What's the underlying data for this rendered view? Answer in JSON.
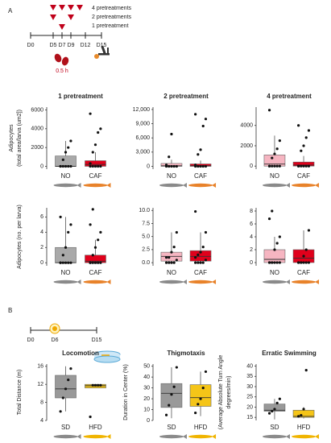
{
  "panel_a": {
    "label": "A",
    "legend": [
      "4 pretreatments",
      "2 pretreatments",
      "1 pretreatment"
    ],
    "days": [
      "D0",
      "D5",
      "D7",
      "D9",
      "D12",
      "D15"
    ],
    "duration": "0.5 h"
  },
  "panel_b": {
    "label": "B",
    "days": [
      "D0",
      "D6",
      "D15"
    ]
  },
  "chart_data": [
    {
      "type": "box",
      "title": "1 pretreatment",
      "ylabel": [
        "Adipocytes",
        "(total area/larva (um2])"
      ],
      "categories": [
        "NO",
        "CAF"
      ],
      "boxes": [
        {
          "color": "#a9a9a9",
          "q1": 0,
          "median": 0,
          "q3": 1100,
          "whislo": 0,
          "whishi": 2700,
          "points": [
            0,
            0,
            0,
            0,
            0,
            0,
            700,
            1500,
            2000,
            2700
          ]
        },
        {
          "color": "#e0001b",
          "q1": 0,
          "median": 200,
          "q3": 600,
          "whislo": 0,
          "whishi": 1500,
          "points": [
            0,
            0,
            0,
            0,
            0,
            300,
            1500,
            2300,
            3600,
            4000,
            5600
          ]
        }
      ],
      "ylim": [
        -300,
        6300
      ],
      "yticks": [
        0,
        2000,
        4000,
        6000
      ]
    },
    {
      "type": "box",
      "title": "2 pretreatment",
      "categories": [
        "NO",
        "CAF"
      ],
      "boxes": [
        {
          "color": "#f6b5c1",
          "q1": 0,
          "median": 100,
          "q3": 600,
          "whislo": 0,
          "whishi": 1400,
          "points": [
            0,
            0,
            0,
            0,
            0,
            300,
            2000,
            6800
          ]
        },
        {
          "color": "#e0001b",
          "q1": 0,
          "median": 100,
          "q3": 500,
          "whislo": 0,
          "whishi": 1200,
          "points": [
            0,
            0,
            0,
            0,
            0,
            300,
            2500,
            3500,
            8500,
            10000,
            11000
          ]
        }
      ],
      "ylim": [
        -600,
        12500
      ],
      "yticks": [
        0,
        {
          "value": 3000,
          "label": "3,000"
        },
        {
          "value": 6000,
          "label": "6,000"
        },
        {
          "value": 9000,
          "label": "9,000"
        },
        {
          "value": 12000,
          "label": "12,000"
        }
      ]
    },
    {
      "type": "box",
      "title": "4 pretreatment",
      "categories": [
        "NO",
        "CAF"
      ],
      "boxes": [
        {
          "color": "#f6b5c1",
          "q1": 0,
          "median": 200,
          "q3": 1100,
          "whislo": 0,
          "whishi": 3000,
          "points": [
            0,
            0,
            0,
            0,
            0,
            0,
            800,
            1200,
            1700,
            2500,
            5500
          ]
        },
        {
          "color": "#e0001b",
          "q1": 0,
          "median": 100,
          "q3": 400,
          "whislo": 0,
          "whishi": 1000,
          "points": [
            0,
            0,
            0,
            0,
            0,
            0,
            1500,
            2000,
            2800,
            3500,
            4000
          ]
        }
      ],
      "ylim": [
        -300,
        5800
      ],
      "yticks": [
        0,
        2000,
        4000
      ]
    },
    {
      "type": "box",
      "ylabel": [
        "Adipocytes (no. per larva)"
      ],
      "categories": [
        "NO",
        "CAF"
      ],
      "boxes": [
        {
          "color": "#a9a9a9",
          "q1": 0,
          "median": 0,
          "q3": 2,
          "whislo": 0,
          "whishi": 6,
          "points": [
            0,
            0,
            0,
            0,
            0,
            0,
            1,
            2,
            4,
            5,
            6
          ]
        },
        {
          "color": "#e0001b",
          "q1": 0,
          "median": 0.2,
          "q3": 1,
          "whislo": 0,
          "whishi": 3,
          "points": [
            0,
            0,
            0,
            0,
            0,
            0,
            1,
            2,
            3,
            4,
            5,
            7
          ]
        }
      ],
      "ylim": [
        -0.4,
        7.2
      ],
      "yticks": [
        0,
        2,
        4,
        6
      ]
    },
    {
      "type": "box",
      "categories": [
        "NO",
        "CAF"
      ],
      "boxes": [
        {
          "color": "#f6b5c1",
          "q1": 0.3,
          "median": 1.2,
          "q3": 2,
          "whislo": 0,
          "whishi": 5.8,
          "points": [
            0,
            0,
            0,
            0,
            0.5,
            1,
            1,
            2,
            3,
            5.8
          ]
        },
        {
          "color": "#e0001b",
          "q1": 0.3,
          "median": 1.2,
          "q3": 2.3,
          "whislo": 0,
          "whishi": 5.8,
          "points": [
            0,
            0,
            0,
            0,
            0.5,
            1,
            1.5,
            2,
            3,
            5.8,
            9.8
          ]
        }
      ],
      "ylim": [
        -0.6,
        10.5
      ],
      "yticks": [
        {
          "value": 0,
          "label": "0.0"
        },
        2.5,
        {
          "value": 5,
          "label": "5.0"
        },
        7.5,
        {
          "value": 10,
          "label": "10.0"
        }
      ]
    },
    {
      "type": "box",
      "categories": [
        "NO",
        "CAF"
      ],
      "boxes": [
        {
          "color": "#f6b5c1",
          "q1": 0,
          "median": 0.5,
          "q3": 2,
          "whislo": 0,
          "whishi": 4,
          "points": [
            0,
            0,
            0,
            0,
            0,
            0,
            0,
            2,
            3,
            4,
            6.8,
            8
          ]
        },
        {
          "color": "#e0001b",
          "q1": 0,
          "median": 0.7,
          "q3": 2,
          "whislo": 0,
          "whishi": 5,
          "points": [
            0,
            0,
            0,
            0,
            0,
            0,
            0,
            1,
            2,
            5
          ]
        }
      ],
      "ylim": [
        -0.5,
        8.5
      ],
      "yticks": [
        0,
        2,
        4,
        6,
        8
      ]
    },
    {
      "type": "box",
      "title": "Locomotion",
      "ylabel": [
        "Total Distance (m)"
      ],
      "categories": [
        "SD",
        "HFD"
      ],
      "boxes": [
        {
          "color": "#999999",
          "q1": 9,
          "median": 11,
          "q3": 14,
          "whislo": 6,
          "whishi": 16,
          "points": [
            6,
            9,
            11,
            13,
            15.5
          ]
        },
        {
          "color": "#f5c518",
          "q1": 11.2,
          "median": 11.7,
          "q3": 12,
          "whislo": 11.2,
          "whishi": 12,
          "points": [
            4.8,
            11.8,
            11.8,
            11.8,
            11.8
          ]
        }
      ],
      "ylim": [
        4,
        16.5
      ],
      "yticks": [
        4,
        8,
        12,
        16
      ]
    },
    {
      "type": "box",
      "title": "Thigmotaxis",
      "ylabel": [
        "Duration in Center (%)"
      ],
      "categories": [
        "SD",
        "HFD"
      ],
      "boxes": [
        {
          "color": "#999999",
          "q1": 12,
          "median": 25,
          "q3": 34,
          "whislo": 2,
          "whishi": 49,
          "points": [
            5,
            14,
            24,
            31,
            49
          ]
        },
        {
          "color": "#f5c518",
          "q1": 13,
          "median": 21,
          "q3": 33,
          "whislo": 4,
          "whishi": 45,
          "points": [
            7,
            15,
            20,
            30,
            45
          ]
        }
      ],
      "ylim": [
        0,
        52
      ],
      "yticks": [
        0,
        10,
        20,
        30,
        40,
        50
      ]
    },
    {
      "type": "box",
      "title": "Erratic Swimming",
      "ylabel": [
        "(Average Absolute Turn Angle",
        "degrees/min)"
      ],
      "categories": [
        "SD",
        "HFD"
      ],
      "boxes": [
        {
          "color": "#999999",
          "q1": 18,
          "median": 18.5,
          "q3": 21.5,
          "whislo": 14,
          "whishi": 24,
          "points": [
            17,
            18,
            19,
            22,
            24
          ]
        },
        {
          "color": "#f5c518",
          "q1": 15,
          "median": 15.5,
          "q3": 18.5,
          "whislo": 14.5,
          "whishi": 20,
          "points": [
            15.5,
            16,
            19,
            38
          ]
        }
      ],
      "ylim": [
        13.5,
        41
      ],
      "yticks": [
        15,
        20,
        25,
        30,
        35,
        40
      ]
    }
  ]
}
